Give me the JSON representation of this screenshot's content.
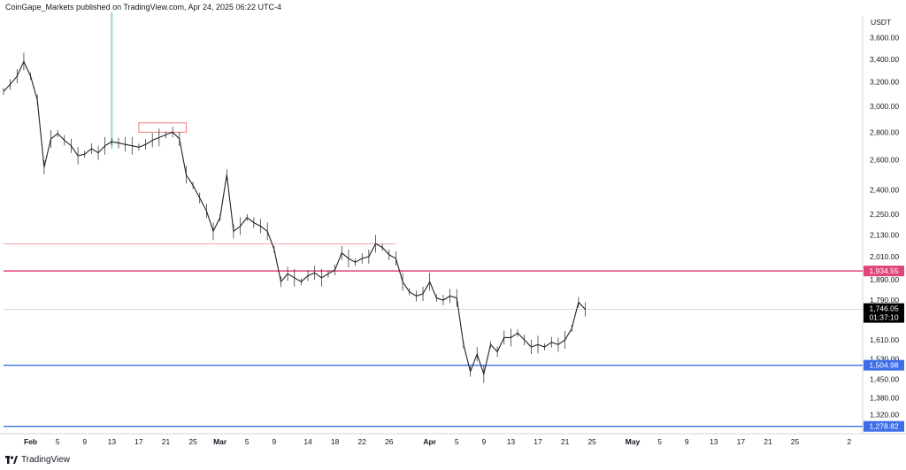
{
  "header": {
    "published_by": "CoinGape_Markets published on TradingView.com, Apr 24, 2025 06:22 UTC-4"
  },
  "footer": {
    "brand": "TradingView",
    "logo_icon": "tradingview-logo-icon"
  },
  "colors": {
    "resistance": "#e0467c",
    "support": "#3d6ee8",
    "candle": "#1f2328",
    "current_price_bg": "#000000",
    "zone_box": "#e85d5d",
    "highlight_bar": "#8fd8d0"
  },
  "chart_data": {
    "type": "candlestick",
    "title": "",
    "currency": "USDT",
    "y_scale": "log",
    "ylim": [
      1260,
      3780
    ],
    "y_ticks": [
      "3,600.00",
      "3,400.00",
      "3,200.00",
      "3,000.00",
      "2,800.00",
      "2,600.00",
      "2,400.00",
      "2,250.00",
      "2,130.00",
      "2,010.00",
      "1,890.00",
      "1,790.00",
      "1,610.00",
      "1,530.00",
      "1,450.00",
      "1,380.00",
      "1,320.00"
    ],
    "x_range": [
      "2025-01-28",
      "2025-06-04"
    ],
    "x_ticks": [
      {
        "date": "2025-02-01",
        "label": "Feb",
        "bold": true
      },
      {
        "date": "2025-02-05",
        "label": "5"
      },
      {
        "date": "2025-02-09",
        "label": "9"
      },
      {
        "date": "2025-02-13",
        "label": "13"
      },
      {
        "date": "2025-02-17",
        "label": "17"
      },
      {
        "date": "2025-02-21",
        "label": "21"
      },
      {
        "date": "2025-02-25",
        "label": "25"
      },
      {
        "date": "2025-03-01",
        "label": "Mar",
        "bold": true
      },
      {
        "date": "2025-03-05",
        "label": "5"
      },
      {
        "date": "2025-03-09",
        "label": "9"
      },
      {
        "date": "2025-03-14",
        "label": "14"
      },
      {
        "date": "2025-03-18",
        "label": "18"
      },
      {
        "date": "2025-03-22",
        "label": "22"
      },
      {
        "date": "2025-03-26",
        "label": "26"
      },
      {
        "date": "2025-04-01",
        "label": "Apr",
        "bold": true
      },
      {
        "date": "2025-04-05",
        "label": "5"
      },
      {
        "date": "2025-04-09",
        "label": "9"
      },
      {
        "date": "2025-04-13",
        "label": "13"
      },
      {
        "date": "2025-04-17",
        "label": "17"
      },
      {
        "date": "2025-04-21",
        "label": "21"
      },
      {
        "date": "2025-04-25",
        "label": "25"
      },
      {
        "date": "2025-05-01",
        "label": "May",
        "bold": true
      },
      {
        "date": "2025-05-05",
        "label": "5"
      },
      {
        "date": "2025-05-09",
        "label": "9"
      },
      {
        "date": "2025-05-13",
        "label": "13"
      },
      {
        "date": "2025-05-17",
        "label": "17"
      },
      {
        "date": "2025-05-21",
        "label": "21"
      },
      {
        "date": "2025-05-25",
        "label": "25"
      },
      {
        "date": "2025-06-02",
        "label": "2"
      }
    ],
    "price_path": [
      [
        "2025-01-28",
        3120
      ],
      [
        "2025-01-29",
        3180
      ],
      [
        "2025-01-30",
        3250
      ],
      [
        "2025-01-31",
        3380
      ],
      [
        "2025-02-01",
        3250
      ],
      [
        "2025-02-02",
        3050
      ],
      [
        "2025-02-03",
        2550
      ],
      [
        "2025-02-04",
        2750
      ],
      [
        "2025-02-05",
        2790
      ],
      [
        "2025-02-06",
        2740
      ],
      [
        "2025-02-07",
        2700
      ],
      [
        "2025-02-08",
        2630
      ],
      [
        "2025-02-09",
        2640
      ],
      [
        "2025-02-10",
        2680
      ],
      [
        "2025-02-11",
        2650
      ],
      [
        "2025-02-12",
        2700
      ],
      [
        "2025-02-13",
        2730
      ],
      [
        "2025-02-14",
        2720
      ],
      [
        "2025-02-15",
        2710
      ],
      [
        "2025-02-16",
        2700
      ],
      [
        "2025-02-17",
        2690
      ],
      [
        "2025-02-18",
        2710
      ],
      [
        "2025-02-19",
        2740
      ],
      [
        "2025-02-20",
        2760
      ],
      [
        "2025-02-21",
        2780
      ],
      [
        "2025-02-22",
        2800
      ],
      [
        "2025-02-23",
        2750
      ],
      [
        "2025-02-24",
        2500
      ],
      [
        "2025-02-25",
        2430
      ],
      [
        "2025-02-26",
        2350
      ],
      [
        "2025-02-27",
        2270
      ],
      [
        "2025-02-28",
        2150
      ],
      [
        "2025-03-01",
        2230
      ],
      [
        "2025-03-02",
        2500
      ],
      [
        "2025-03-03",
        2150
      ],
      [
        "2025-03-04",
        2180
      ],
      [
        "2025-03-05",
        2230
      ],
      [
        "2025-03-06",
        2200
      ],
      [
        "2025-03-07",
        2180
      ],
      [
        "2025-03-08",
        2150
      ],
      [
        "2025-03-09",
        2050
      ],
      [
        "2025-03-10",
        1880
      ],
      [
        "2025-03-11",
        1920
      ],
      [
        "2025-03-12",
        1900
      ],
      [
        "2025-03-13",
        1880
      ],
      [
        "2025-03-14",
        1910
      ],
      [
        "2025-03-15",
        1925
      ],
      [
        "2025-03-16",
        1900
      ],
      [
        "2025-03-17",
        1920
      ],
      [
        "2025-03-18",
        1940
      ],
      [
        "2025-03-19",
        2030
      ],
      [
        "2025-03-20",
        2000
      ],
      [
        "2025-03-21",
        1980
      ],
      [
        "2025-03-22",
        2000
      ],
      [
        "2025-03-23",
        2010
      ],
      [
        "2025-03-24",
        2080
      ],
      [
        "2025-03-25",
        2060
      ],
      [
        "2025-03-26",
        2020
      ],
      [
        "2025-03-27",
        2000
      ],
      [
        "2025-03-28",
        1880
      ],
      [
        "2025-03-29",
        1830
      ],
      [
        "2025-03-30",
        1810
      ],
      [
        "2025-03-31",
        1820
      ],
      [
        "2025-04-01",
        1880
      ],
      [
        "2025-04-02",
        1800
      ],
      [
        "2025-04-03",
        1790
      ],
      [
        "2025-04-04",
        1810
      ],
      [
        "2025-04-05",
        1800
      ],
      [
        "2025-04-06",
        1590
      ],
      [
        "2025-04-07",
        1480
      ],
      [
        "2025-04-08",
        1550
      ],
      [
        "2025-04-09",
        1470
      ],
      [
        "2025-04-10",
        1590
      ],
      [
        "2025-04-11",
        1560
      ],
      [
        "2025-04-12",
        1620
      ],
      [
        "2025-04-13",
        1620
      ],
      [
        "2025-04-14",
        1640
      ],
      [
        "2025-04-15",
        1610
      ],
      [
        "2025-04-16",
        1580
      ],
      [
        "2025-04-17",
        1590
      ],
      [
        "2025-04-18",
        1580
      ],
      [
        "2025-04-19",
        1600
      ],
      [
        "2025-04-20",
        1590
      ],
      [
        "2025-04-21",
        1610
      ],
      [
        "2025-04-22",
        1660
      ],
      [
        "2025-04-23",
        1780
      ],
      [
        "2025-04-24",
        1746.05
      ]
    ],
    "levels": [
      {
        "name": "resistance",
        "value": 1934.55,
        "label": "1,934.55",
        "color_key": "resistance"
      },
      {
        "name": "support",
        "value": 1504.98,
        "label": "1,504.98",
        "color_key": "support"
      },
      {
        "name": "lower-support",
        "value": 1278.82,
        "label": "1,278.82",
        "color_key": "support"
      }
    ],
    "current_price": {
      "value": 1746.05,
      "label": "1,746.05",
      "countdown": "01:37:10"
    },
    "grid": false
  }
}
